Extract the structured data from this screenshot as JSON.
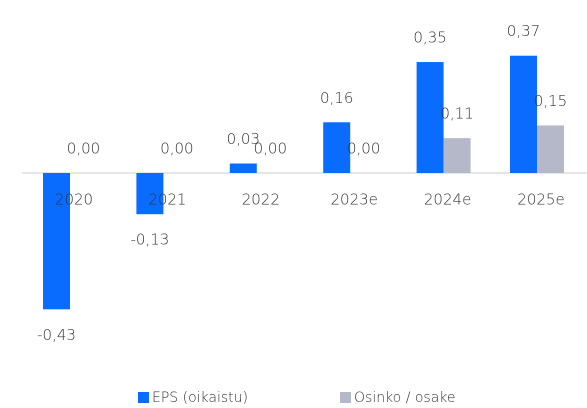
{
  "chart_data": {
    "type": "bar",
    "categories": [
      "2020",
      "2021",
      "2022",
      "2023e",
      "2024e",
      "2025e"
    ],
    "series": [
      {
        "name": "EPS (oikaistu)",
        "color": "#0a6cff",
        "values": [
          -0.43,
          -0.13,
          0.03,
          0.16,
          0.35,
          0.37
        ],
        "value_labels": [
          "-0,43",
          "-0,13",
          "0,03",
          "0,16",
          "0,35",
          "0,37"
        ]
      },
      {
        "name": "Osinko / osake",
        "color": "#b4b8c8",
        "values": [
          0,
          0,
          0,
          0,
          0.11,
          0.15
        ],
        "value_labels": [
          "0,00",
          "0,00",
          "0,00",
          "0,00",
          "0,11",
          "0,15"
        ]
      }
    ]
  }
}
